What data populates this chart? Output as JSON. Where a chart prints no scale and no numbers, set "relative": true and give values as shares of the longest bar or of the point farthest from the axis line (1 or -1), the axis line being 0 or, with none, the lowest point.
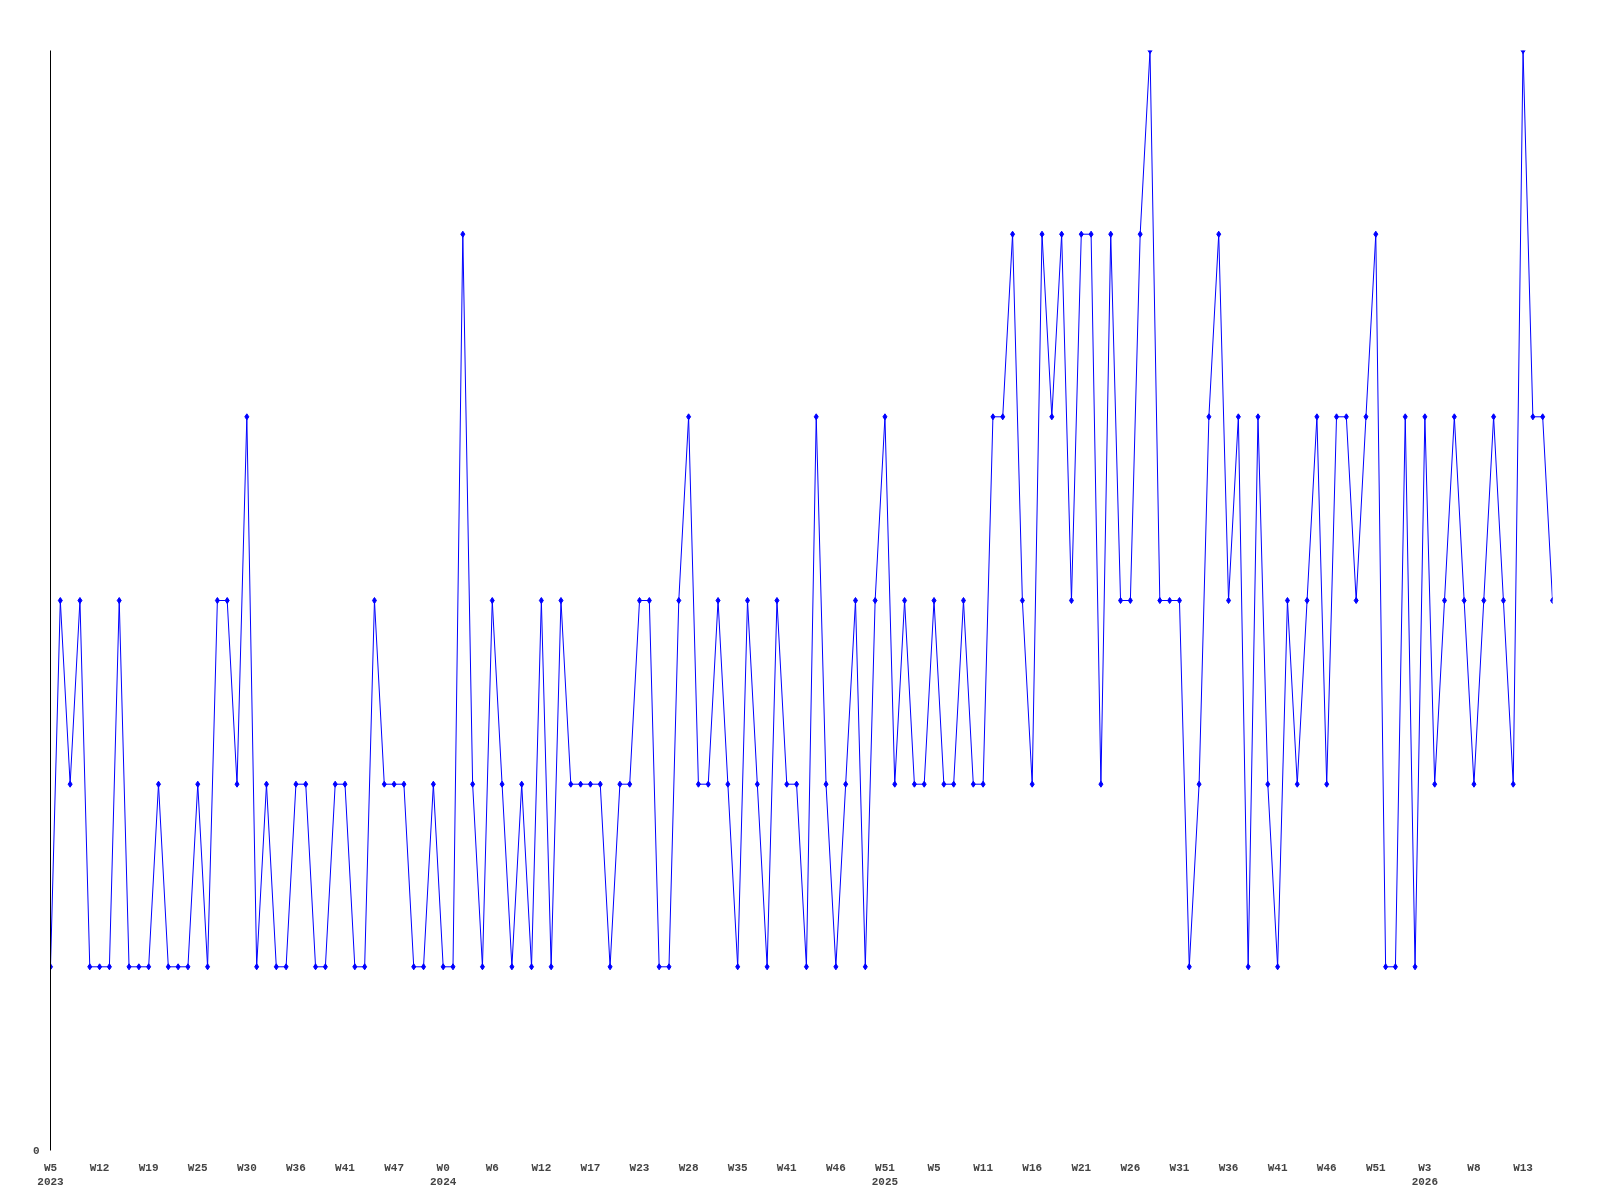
{
  "chart_data": {
    "type": "line",
    "relative": true,
    "marker": "diamond",
    "line_style": "solid",
    "grid": false,
    "categories": [
      "W5\n2023",
      null,
      null,
      null,
      null,
      "W12",
      null,
      null,
      null,
      null,
      "W19",
      null,
      null,
      null,
      null,
      "W25",
      null,
      null,
      null,
      null,
      "W30",
      null,
      null,
      null,
      null,
      "W36",
      null,
      null,
      null,
      null,
      "W41",
      null,
      null,
      null,
      null,
      "W47",
      null,
      null,
      null,
      null,
      "W0\n2024",
      null,
      null,
      null,
      null,
      "W6",
      null,
      null,
      null,
      null,
      "W12",
      null,
      null,
      null,
      null,
      "W17",
      null,
      null,
      null,
      null,
      "W23",
      null,
      null,
      null,
      null,
      "W28",
      null,
      null,
      null,
      null,
      "W35",
      null,
      null,
      null,
      null,
      "W41",
      null,
      null,
      null,
      null,
      "W46",
      null,
      null,
      null,
      null,
      "W51\n2025",
      null,
      null,
      null,
      null,
      "W5",
      null,
      null,
      null,
      null,
      "W11",
      null,
      null,
      null,
      null,
      "W16",
      null,
      null,
      null,
      null,
      "W21",
      null,
      null,
      null,
      null,
      "W26",
      null,
      null,
      null,
      null,
      "W31",
      null,
      null,
      null,
      null,
      "W36",
      null,
      null,
      null,
      null,
      "W41",
      null,
      null,
      null,
      null,
      "W46",
      null,
      null,
      null,
      null,
      "W51",
      null,
      null,
      null,
      null,
      "W3\n2026",
      null,
      null,
      null,
      null,
      "W8",
      null,
      null,
      null,
      null,
      "W13",
      null,
      null,
      null
    ],
    "annotations": [
      "0"
    ],
    "series": [
      {
        "color": "#0000ff",
        "values": [
          0.167,
          0.5,
          0.333,
          0.5,
          0.167,
          0.167,
          0.167,
          0.5,
          0.167,
          0.167,
          0.167,
          0.333,
          0.167,
          0.167,
          0.167,
          0.333,
          0.167,
          0.5,
          0.5,
          0.333,
          0.667,
          0.167,
          0.333,
          0.167,
          0.167,
          0.333,
          0.333,
          0.167,
          0.167,
          0.333,
          0.333,
          0.167,
          0.167,
          0.5,
          0.333,
          0.333,
          0.333,
          0.167,
          0.167,
          0.333,
          0.167,
          0.167,
          0.833,
          0.333,
          0.167,
          0.5,
          0.333,
          0.167,
          0.333,
          0.167,
          0.5,
          0.167,
          0.5,
          0.333,
          0.333,
          0.333,
          0.333,
          0.167,
          0.333,
          0.333,
          0.5,
          0.5,
          0.167,
          0.167,
          0.5,
          0.667,
          0.333,
          0.333,
          0.5,
          0.333,
          0.167,
          0.5,
          0.333,
          0.167,
          0.5,
          0.333,
          0.333,
          0.167,
          0.667,
          0.333,
          0.167,
          0.333,
          0.5,
          0.167,
          0.5,
          0.667,
          0.333,
          0.5,
          0.333,
          0.333,
          0.5,
          0.333,
          0.333,
          0.5,
          0.333,
          0.333,
          0.667,
          0.667,
          0.833,
          0.5,
          0.333,
          0.833,
          0.667,
          0.833,
          0.5,
          0.833,
          0.833,
          0.333,
          0.833,
          0.5,
          0.5,
          0.833,
          1,
          0.5,
          0.5,
          0.5,
          0.167,
          0.333,
          0.667,
          0.833,
          0.5,
          0.667,
          0.167,
          0.667,
          0.333,
          0.167,
          0.5,
          0.333,
          0.5,
          0.667,
          0.333,
          0.667,
          0.667,
          0.5,
          0.667,
          0.833,
          0.167,
          0.167,
          0.667,
          0.167,
          0.667,
          0.333,
          0.5,
          0.667,
          0.5,
          0.333,
          0.5,
          0.667,
          0.5,
          0.333,
          1,
          0.667,
          0.667,
          0.5
        ]
      }
    ]
  }
}
